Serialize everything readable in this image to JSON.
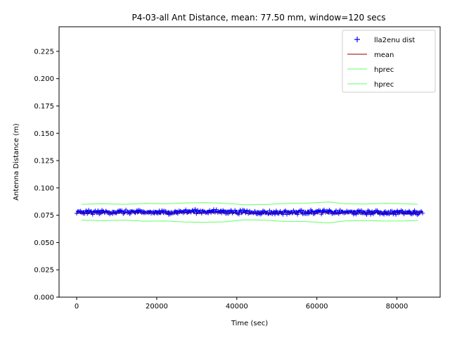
{
  "chart_data": {
    "type": "line",
    "title": "P4-03-all Ant Distance, mean: 77.50 mm, window=120 secs",
    "xlabel": "Time (sec)",
    "ylabel": "Antenna Distance (m)",
    "xlim": [
      -4400,
      90800
    ],
    "ylim": [
      0.0,
      0.2475
    ],
    "xticks": [
      0,
      20000,
      40000,
      60000,
      80000
    ],
    "xtick_labels": [
      "0",
      "20000",
      "40000",
      "60000",
      "80000"
    ],
    "yticks": [
      0.0,
      0.025,
      0.05,
      0.075,
      0.1,
      0.125,
      0.15,
      0.175,
      0.2,
      0.225
    ],
    "ytick_labels": [
      "0.000",
      "0.025",
      "0.050",
      "0.075",
      "0.100",
      "0.125",
      "0.150",
      "0.175",
      "0.200",
      "0.225"
    ],
    "grid": false,
    "legend_position": "top-right",
    "series": [
      {
        "name": "lla2enu dist",
        "style": "markers",
        "marker": "+",
        "color": "#0000ff",
        "x_range": [
          0,
          86400
        ],
        "center": 0.0775,
        "band_low": 0.0745,
        "band_high": 0.0805,
        "typical_values": [
          {
            "x": 0,
            "y": 0.0775
          },
          {
            "x": 10000,
            "y": 0.078
          },
          {
            "x": 20000,
            "y": 0.0775
          },
          {
            "x": 30000,
            "y": 0.0785
          },
          {
            "x": 40000,
            "y": 0.078
          },
          {
            "x": 50000,
            "y": 0.0775
          },
          {
            "x": 60000,
            "y": 0.078
          },
          {
            "x": 70000,
            "y": 0.0775
          },
          {
            "x": 80000,
            "y": 0.0775
          },
          {
            "x": 86400,
            "y": 0.0775
          }
        ]
      },
      {
        "name": "mean",
        "style": "line",
        "color": "#8b0000",
        "x": [
          0,
          86400
        ],
        "y": [
          0.0775,
          0.0775
        ]
      },
      {
        "name": "hprec",
        "style": "line",
        "color": "#66ff66",
        "x": [
          1200,
          6000,
          12000,
          17000,
          22000,
          27000,
          32000,
          37000,
          42000,
          47000,
          52000,
          57000,
          63000,
          67000,
          72000,
          77000,
          82000,
          85200
        ],
        "y": [
          0.085,
          0.0855,
          0.085,
          0.0858,
          0.0855,
          0.0862,
          0.0865,
          0.086,
          0.0845,
          0.0848,
          0.0858,
          0.086,
          0.0872,
          0.0855,
          0.0852,
          0.0858,
          0.0855,
          0.085
        ]
      },
      {
        "name": "hprec",
        "style": "line",
        "color": "#66ff66",
        "x": [
          1200,
          6000,
          12000,
          17000,
          22000,
          27000,
          32000,
          37000,
          42000,
          47000,
          52000,
          57000,
          63000,
          67000,
          72000,
          77000,
          82000,
          85200
        ],
        "y": [
          0.0705,
          0.07,
          0.0705,
          0.0695,
          0.0698,
          0.0688,
          0.0685,
          0.069,
          0.0708,
          0.0705,
          0.0693,
          0.0692,
          0.068,
          0.0698,
          0.0702,
          0.0697,
          0.0698,
          0.0703
        ]
      }
    ]
  }
}
